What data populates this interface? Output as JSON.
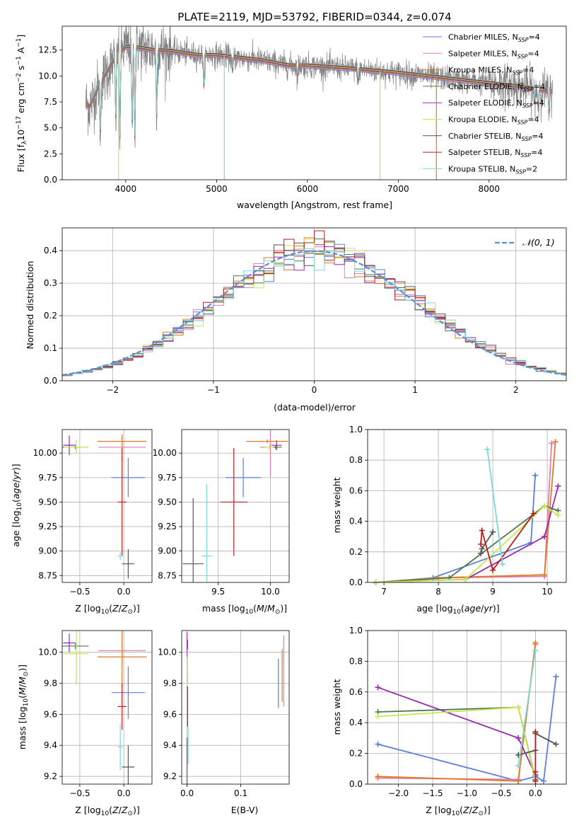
{
  "colors": {
    "Chabrier MILES": "#5b7fdc",
    "Salpeter MILES": "#e27bb0",
    "Kroupa MILES": "#e07b23",
    "Chabrier ELODIE": "#4d7a4d",
    "Salpeter ELODIE": "#9a2ab0",
    "Kroupa ELODIE": "#c7e84c",
    "Chabrier STELIB": "#555555",
    "Salpeter STELIB": "#b81c1c",
    "Kroupa STELIB": "#7fd8d8",
    "data": "#808080",
    "gauss": "#5b8fd6"
  },
  "chart_data": [
    {
      "id": "spectrum",
      "type": "line",
      "title": "PLATE=2119, MJD=53792, FIBERID=0344, z=0.074",
      "xlabel": "wavelength [Angstrom, rest frame]",
      "ylabel": "Flux [fλ10⁻¹⁷ erg cm⁻² s⁻¹ A⁻¹]",
      "xlim": [
        3300,
        8850
      ],
      "ylim": [
        0,
        14.8
      ],
      "xticks": [
        "4000",
        "5000",
        "6000",
        "7000",
        "8000"
      ],
      "yticks": [
        "0.0",
        "2.5",
        "5.0",
        "7.5",
        "10.0",
        "12.5"
      ],
      "legend": [
        {
          "label": "Chabrier MILES, NSSP=4",
          "base": "Chabrier MILES, N",
          "sub": "SSP",
          "tail": "=4",
          "model": "Chabrier MILES"
        },
        {
          "label": "Salpeter MILES, NSSP=4",
          "base": "Salpeter MILES, N",
          "sub": "SSP",
          "tail": "=4",
          "model": "Salpeter MILES"
        },
        {
          "label": "Kroupa MILES, NSSP=4",
          "base": "Kroupa MILES, N",
          "sub": "SSP",
          "tail": "=4",
          "model": "Kroupa MILES"
        },
        {
          "label": "Chabrier ELODIE, NSSP=4",
          "base": "Chabrier ELODIE, N",
          "sub": "SSP",
          "tail": "=4",
          "model": "Chabrier ELODIE"
        },
        {
          "label": "Salpeter ELODIE, NSSP=4",
          "base": "Salpeter ELODIE, N",
          "sub": "SSP",
          "tail": "=4",
          "model": "Salpeter ELODIE"
        },
        {
          "label": "Kroupa ELODIE, NSSP=4",
          "base": "Kroupa ELODIE, N",
          "sub": "SSP",
          "tail": "=4",
          "model": "Kroupa ELODIE"
        },
        {
          "label": "Chabrier STELIB, NSSP=4",
          "base": "Chabrier STELIB, N",
          "sub": "SSP",
          "tail": "=4",
          "model": "Chabrier STELIB"
        },
        {
          "label": "Salpeter STELIB, NSSP=4",
          "base": "Salpeter STELIB, N",
          "sub": "SSP",
          "tail": "=4",
          "model": "Salpeter STELIB"
        },
        {
          "label": "Kroupa STELIB, NSSP=2",
          "base": "Kroupa STELIB, N",
          "sub": "SSP",
          "tail": "=2",
          "model": "Kroupa STELIB"
        }
      ],
      "continuum": [
        [
          3550,
          7.5
        ],
        [
          3600,
          7.0
        ],
        [
          3650,
          8.0
        ],
        [
          3700,
          9.0
        ],
        [
          3800,
          10.5
        ],
        [
          3900,
          12.0
        ],
        [
          4000,
          12.8
        ],
        [
          4100,
          12.8
        ],
        [
          4300,
          12.5
        ],
        [
          4500,
          12.4
        ],
        [
          4800,
          12.0
        ],
        [
          5000,
          12.0
        ],
        [
          5200,
          11.8
        ],
        [
          5500,
          11.5
        ],
        [
          5800,
          11.0
        ],
        [
          6000,
          11.0
        ],
        [
          6500,
          10.7
        ],
        [
          7000,
          10.3
        ],
        [
          7500,
          9.8
        ],
        [
          8000,
          9.3
        ],
        [
          8300,
          9.0
        ],
        [
          8700,
          8.5
        ]
      ],
      "dips": [
        [
          3720,
          4.5
        ],
        [
          3890,
          6.0
        ],
        [
          3935,
          4.0
        ],
        [
          4070,
          5.5
        ],
        [
          4100,
          4.0
        ],
        [
          4340,
          6.0
        ],
        [
          4860,
          9.0
        ],
        [
          5175,
          10.5
        ],
        [
          5890,
          10.0
        ],
        [
          6560,
          9.5
        ],
        [
          8500,
          7.5
        ],
        [
          8540,
          7.0
        ],
        [
          8660,
          6.5
        ]
      ],
      "model_gaps": [
        [
          3920,
          "Kroupa ELODIE"
        ],
        [
          5085,
          "Kroupa STELIB"
        ],
        [
          6800,
          "Kroupa ELODIE"
        ],
        [
          7420,
          "Kroupa MILES"
        ]
      ]
    },
    {
      "id": "residuals",
      "type": "line",
      "xlabel": "(data-model)/error",
      "ylabel": "Normed distribution",
      "xlim": [
        -2.5,
        2.5
      ],
      "ylim": [
        0,
        0.47
      ],
      "xticks": [
        "−2",
        "−1",
        "0",
        "1",
        "2"
      ],
      "yticks": [
        "0.0",
        "0.1",
        "0.2",
        "0.3",
        "0.4"
      ],
      "bin_width": 0.1,
      "legend": [
        {
          "label": "𝒩(0, 1)",
          "style": "dashed"
        }
      ]
    },
    {
      "id": "age-vs-Z",
      "type": "scatter",
      "xlabel": "Z [log10(Z/Z⊙)]",
      "ylabel": "age  [log10(age/yr)]",
      "xlim": [
        -0.7,
        0.32
      ],
      "ylim": [
        8.68,
        10.24
      ],
      "xticks": [
        "−0.5",
        "0.0"
      ],
      "yticks": [
        "8.75",
        "9.00",
        "9.25",
        "9.50",
        "9.75",
        "10.00"
      ],
      "points": [
        {
          "model": "Chabrier MILES",
          "x": 0.05,
          "y": 9.75,
          "xerr": 0.19,
          "yerr": 0.2
        },
        {
          "model": "Salpeter MILES",
          "x": -0.02,
          "y": 10.06,
          "xerr": 0.27,
          "yerr": 0.13
        },
        {
          "model": "Kroupa MILES",
          "x": -0.02,
          "y": 10.12,
          "xerr": 0.28,
          "yerr": 0.06
        },
        {
          "model": "Chabrier ELODIE",
          "x": -0.55,
          "y": 10.06,
          "xerr": 0.15,
          "yerr": 0.02
        },
        {
          "model": "Salpeter ELODIE",
          "x": -0.62,
          "y": 10.08,
          "xerr": 0.07,
          "yerr": 0.1
        },
        {
          "model": "Kroupa ELODIE",
          "x": -0.54,
          "y": 10.06,
          "xerr": 0.14,
          "yerr": 0.07
        },
        {
          "model": "Chabrier STELIB",
          "x": 0.05,
          "y": 8.87,
          "xerr": 0.07,
          "yerr": 0.15
        },
        {
          "model": "Salpeter STELIB",
          "x": -0.02,
          "y": 9.5,
          "xerr": 0.05,
          "yerr": 0.55
        },
        {
          "model": "Kroupa STELIB",
          "x": -0.04,
          "y": 8.95,
          "xerr": 0.03,
          "yerr": 0.04
        }
      ]
    },
    {
      "id": "age-vs-mass",
      "type": "scatter",
      "xlabel": "mass [log10(M/M⊙)]",
      "ylabel": "",
      "xlim": [
        9.15,
        10.18
      ],
      "ylim": [
        8.68,
        10.24
      ],
      "xticks": [
        "9.5",
        "10.0"
      ],
      "yticks": [
        "8.75",
        "9.00",
        "9.25",
        "9.50",
        "9.75",
        "10.00"
      ],
      "points": [
        {
          "model": "Chabrier MILES",
          "x": 9.74,
          "y": 9.75,
          "xerr": 0.17,
          "yerr": 0.2
        },
        {
          "model": "Salpeter MILES",
          "x": 10.0,
          "y": 10.06,
          "xerr": 0.1,
          "yerr": 0.3
        },
        {
          "model": "Kroupa MILES",
          "x": 9.97,
          "y": 10.12,
          "xerr": 0.2,
          "yerr": 0.02
        },
        {
          "model": "Chabrier ELODIE",
          "x": 10.05,
          "y": 10.06,
          "xerr": 0.06,
          "yerr": 0.02
        },
        {
          "model": "Salpeter ELODIE",
          "x": 10.06,
          "y": 10.08,
          "xerr": 0.05,
          "yerr": 0.05
        },
        {
          "model": "Kroupa ELODIE",
          "x": 9.99,
          "y": 10.06,
          "xerr": 0.04,
          "yerr": 0.03
        },
        {
          "model": "Chabrier STELIB",
          "x": 9.26,
          "y": 8.87,
          "xerr": 0.1,
          "yerr": 0.67
        },
        {
          "model": "Salpeter STELIB",
          "x": 9.65,
          "y": 9.5,
          "xerr": 0.13,
          "yerr": 0.55
        },
        {
          "model": "Kroupa STELIB",
          "x": 9.39,
          "y": 8.95,
          "xerr": 0.05,
          "yerr": 0.73
        }
      ]
    },
    {
      "id": "weight-vs-age",
      "type": "line",
      "xlabel": "age  [log10(age/yr)]",
      "ylabel": "mass weight",
      "xlim": [
        6.7,
        10.35
      ],
      "ylim": [
        0,
        1.0
      ],
      "xticks": [
        "7",
        "8",
        "9",
        "10"
      ],
      "yticks": [
        "0.0",
        "0.2",
        "0.4",
        "0.6",
        "0.8",
        "1.0"
      ],
      "series": [
        {
          "model": "Chabrier MILES",
          "x": [
            6.85,
            7.9,
            9.7,
            9.78
          ],
          "y": [
            0.0,
            0.03,
            0.26,
            0.7
          ]
        },
        {
          "model": "Salpeter MILES",
          "x": [
            6.85,
            8.0,
            9.95,
            10.08
          ],
          "y": [
            0.0,
            0.03,
            0.04,
            0.91
          ]
        },
        {
          "model": "Kroupa MILES",
          "x": [
            6.85,
            8.0,
            9.95,
            10.15
          ],
          "y": [
            0.0,
            0.03,
            0.05,
            0.92
          ]
        },
        {
          "model": "Chabrier ELODIE",
          "x": [
            6.85,
            8.2,
            9.95,
            10.2
          ],
          "y": [
            0.0,
            0.03,
            0.5,
            0.47
          ]
        },
        {
          "model": "Salpeter ELODIE",
          "x": [
            6.85,
            8.5,
            9.95,
            10.2
          ],
          "y": [
            0.0,
            0.02,
            0.3,
            0.63
          ]
        },
        {
          "model": "Kroupa ELODIE",
          "x": [
            6.85,
            8.5,
            9.95,
            10.2
          ],
          "y": [
            0.0,
            0.02,
            0.5,
            0.44
          ]
        },
        {
          "model": "Chabrier STELIB",
          "x": [
            8.78,
            8.8,
            9.0
          ],
          "y": [
            0.19,
            0.22,
            0.33
          ]
        },
        {
          "model": "Salpeter STELIB",
          "x": [
            8.78,
            8.8,
            9.0,
            9.75
          ],
          "y": [
            0.25,
            0.34,
            0.08,
            0.45
          ]
        },
        {
          "model": "Kroupa STELIB",
          "x": [
            8.9,
            9.18
          ],
          "y": [
            0.87,
            0.12
          ]
        }
      ]
    },
    {
      "id": "mass-vs-Z",
      "type": "scatter",
      "xlabel": "Z [log10(Z/Z⊙)]",
      "ylabel": "mass [log10(M/M⊙)]",
      "xlim": [
        -0.7,
        0.32
      ],
      "ylim": [
        9.15,
        10.14
      ],
      "xticks": [
        "−0.5",
        "0.0"
      ],
      "yticks": [
        "9.2",
        "9.4",
        "9.6",
        "9.8",
        "10.0"
      ],
      "points": [
        {
          "model": "Chabrier MILES",
          "x": 0.05,
          "y": 9.74,
          "xerr": 0.19,
          "yerr": 0.17
        },
        {
          "model": "Salpeter MILES",
          "x": -0.02,
          "y": 10.01,
          "xerr": 0.27,
          "yerr": 0.1
        },
        {
          "model": "Kroupa MILES",
          "x": -0.02,
          "y": 9.97,
          "xerr": 0.28,
          "yerr": 0.2
        },
        {
          "model": "Chabrier ELODIE",
          "x": -0.55,
          "y": 10.04,
          "xerr": 0.15,
          "yerr": 0.02
        },
        {
          "model": "Salpeter ELODIE",
          "x": -0.62,
          "y": 10.06,
          "xerr": 0.07,
          "yerr": 0.06
        },
        {
          "model": "Kroupa ELODIE",
          "x": -0.54,
          "y": 9.99,
          "xerr": 0.14,
          "yerr": 0.2
        },
        {
          "model": "Chabrier STELIB",
          "x": 0.05,
          "y": 9.26,
          "xerr": 0.07,
          "yerr": 0.14
        },
        {
          "model": "Salpeter STELIB",
          "x": -0.02,
          "y": 9.65,
          "xerr": 0.05,
          "yerr": 0.15
        },
        {
          "model": "Kroupa STELIB",
          "x": -0.04,
          "y": 9.39,
          "xerr": 0.03,
          "yerr": 0.15
        }
      ]
    },
    {
      "id": "mass-vs-ebv",
      "type": "scatter",
      "xlabel": "E(B-V)",
      "ylabel": "",
      "xlim": [
        -0.01,
        0.19
      ],
      "ylim": [
        9.15,
        10.14
      ],
      "xticks": [
        "0.0",
        "0.1"
      ],
      "yticks": [
        "9.2",
        "9.4",
        "9.6",
        "9.8",
        "10.0"
      ],
      "points": [
        {
          "model": "Chabrier MILES",
          "x": 0.17,
          "y": 9.8,
          "xerr": 0,
          "yerr": 0.16
        },
        {
          "model": "Salpeter MILES",
          "x": 0.18,
          "y": 9.88,
          "xerr": 0,
          "yerr": 0.23
        },
        {
          "model": "Kroupa MILES",
          "x": 0.177,
          "y": 9.85,
          "xerr": 0,
          "yerr": 0.17
        },
        {
          "model": "Chabrier ELODIE",
          "x": 0.001,
          "y": 10.05,
          "xerr": 0,
          "yerr": 0.03
        },
        {
          "model": "Salpeter ELODIE",
          "x": 0.0,
          "y": 10.05,
          "xerr": 0,
          "yerr": 0.08
        },
        {
          "model": "Kroupa ELODIE",
          "x": 0.001,
          "y": 9.9,
          "xerr": 0,
          "yerr": 0.1
        },
        {
          "model": "Chabrier STELIB",
          "x": 0.0,
          "y": 9.3,
          "xerr": 0,
          "yerr": 0.15
        },
        {
          "model": "Salpeter STELIB",
          "x": 0.001,
          "y": 9.65,
          "xerr": 0,
          "yerr": 0.13
        },
        {
          "model": "Kroupa STELIB",
          "x": 0.002,
          "y": 9.4,
          "xerr": 0,
          "yerr": 0.12
        }
      ]
    },
    {
      "id": "weight-vs-Z",
      "type": "line",
      "xlabel": "Z [log10(Z/Z⊙)]",
      "ylabel": "mass weight",
      "xlim": [
        -2.45,
        0.45
      ],
      "ylim": [
        0,
        1.0
      ],
      "xticks": [
        "−2.0",
        "−1.5",
        "−1.0",
        "−0.5",
        "0.0"
      ],
      "yticks": [
        "0.0",
        "0.2",
        "0.4",
        "0.6",
        "0.8",
        "1.0"
      ],
      "series": [
        {
          "model": "Chabrier MILES",
          "x": [
            -2.3,
            -0.25,
            0.0,
            0.12,
            0.3
          ],
          "y": [
            0.26,
            0.02,
            0.05,
            0.02,
            0.7
          ]
        },
        {
          "model": "Salpeter MILES",
          "x": [
            -2.3,
            -0.25,
            0.0
          ],
          "y": [
            0.04,
            0.03,
            0.91
          ]
        },
        {
          "model": "Kroupa MILES",
          "x": [
            -2.3,
            -0.25,
            0.0
          ],
          "y": [
            0.05,
            0.02,
            0.92
          ]
        },
        {
          "model": "Chabrier ELODIE",
          "x": [
            -2.3,
            -0.25,
            0.0
          ],
          "y": [
            0.47,
            0.5,
            0.03
          ]
        },
        {
          "model": "Salpeter ELODIE",
          "x": [
            -2.3,
            -0.25,
            0.0,
            0.0
          ],
          "y": [
            0.63,
            0.3,
            0.06,
            0.02
          ]
        },
        {
          "model": "Kroupa ELODIE",
          "x": [
            -2.3,
            -0.25,
            0.0
          ],
          "y": [
            0.44,
            0.5,
            0.02
          ]
        },
        {
          "model": "Chabrier STELIB",
          "x": [
            -0.25,
            0.0,
            0.0,
            0.3
          ],
          "y": [
            0.19,
            0.22,
            0.33,
            0.26
          ]
        },
        {
          "model": "Salpeter STELIB",
          "x": [
            0.0,
            0.0,
            0.0
          ],
          "y": [
            0.34,
            0.08,
            0.02
          ]
        },
        {
          "model": "Kroupa STELIB",
          "x": [
            -0.25,
            0.0
          ],
          "y": [
            0.12,
            0.87
          ]
        }
      ]
    }
  ]
}
